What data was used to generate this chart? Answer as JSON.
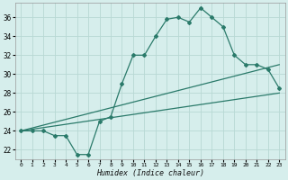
{
  "xlabel": "Humidex (Indice chaleur)",
  "background_color": "#d6eeec",
  "grid_color": "#b8d8d4",
  "line_color": "#2a7a6a",
  "xlim": [
    -0.5,
    23.5
  ],
  "ylim": [
    21.0,
    37.5
  ],
  "yticks": [
    22,
    24,
    26,
    28,
    30,
    32,
    34,
    36
  ],
  "xticks": [
    0,
    1,
    2,
    3,
    4,
    5,
    6,
    7,
    8,
    9,
    10,
    11,
    12,
    13,
    14,
    15,
    16,
    17,
    18,
    19,
    20,
    21,
    22,
    23
  ],
  "line1_x": [
    0,
    1,
    2,
    3,
    4,
    5,
    6,
    7,
    8,
    9,
    10,
    11,
    12,
    13,
    14,
    15,
    16,
    17,
    18,
    19,
    20,
    21,
    22,
    23
  ],
  "line1_y": [
    24.0,
    24.0,
    24.0,
    23.5,
    23.5,
    21.5,
    21.5,
    25.0,
    25.5,
    29.0,
    32.0,
    32.0,
    34.0,
    35.8,
    36.0,
    35.5,
    37.0,
    36.0,
    35.0,
    32.0,
    31.0,
    31.0,
    30.5,
    28.5
  ],
  "line2_x": [
    0,
    23
  ],
  "line2_y": [
    24.0,
    28.0
  ],
  "line3_x": [
    0,
    23
  ],
  "line3_y": [
    24.0,
    31.0
  ]
}
